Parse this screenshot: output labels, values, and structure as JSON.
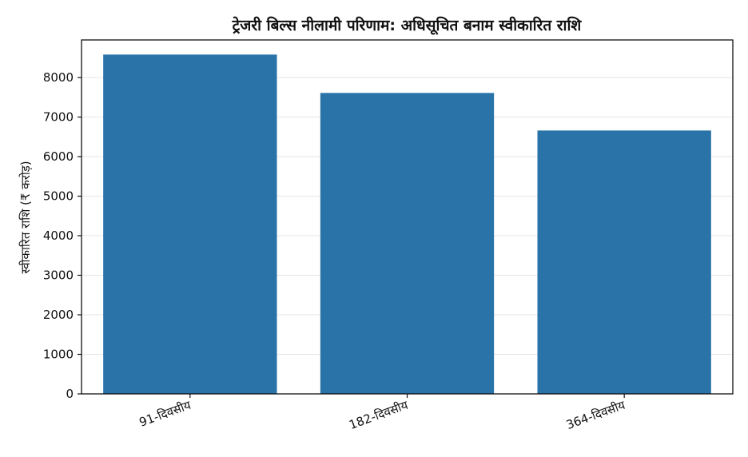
{
  "chart_data": {
    "type": "bar",
    "title": "ट्रेजरी बिल्स नीलामी परिणाम: अधिसूचित बनाम स्वीकारित राशि",
    "xlabel": "",
    "ylabel": "स्वीकारित राशि (₹ करोड़)",
    "categories": [
      "91-दिवसीय",
      "182-दिवसीय",
      "364-दिवसीय"
    ],
    "values": [
      8580,
      7610,
      6660
    ],
    "ylim": [
      0,
      8950
    ],
    "yticks": [
      0,
      1000,
      2000,
      3000,
      4000,
      5000,
      6000,
      7000,
      8000
    ],
    "grid": "y",
    "colors": {
      "bar": "#2a73a8",
      "grid": "#e6e6e6",
      "axis": "#111111"
    }
  }
}
